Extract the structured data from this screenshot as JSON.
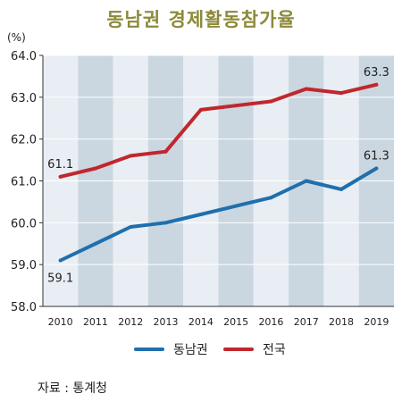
{
  "chart_data": {
    "type": "line",
    "title": "동남권 경제활동참가율",
    "ylabel": "(%)",
    "categories": [
      "2010",
      "2011",
      "2012",
      "2013",
      "2014",
      "2015",
      "2016",
      "2017",
      "2018",
      "2019"
    ],
    "ylim": [
      58.0,
      64.0
    ],
    "yticks": [
      "58.0",
      "59.0",
      "60.0",
      "61.0",
      "62.0",
      "63.0",
      "64.0"
    ],
    "series": [
      {
        "name": "동남권",
        "color": "#1f6fad",
        "values": [
          59.1,
          59.5,
          59.9,
          60.0,
          60.2,
          60.4,
          60.6,
          61.0,
          60.8,
          61.3
        ]
      },
      {
        "name": "전국",
        "color": "#c1272d",
        "values": [
          61.1,
          61.3,
          61.6,
          61.7,
          62.7,
          62.8,
          62.9,
          63.2,
          63.1,
          63.3
        ]
      }
    ],
    "data_labels": [
      {
        "series": 0,
        "index": 0,
        "text": "59.1"
      },
      {
        "series": 0,
        "index": 9,
        "text": "61.3"
      },
      {
        "series": 1,
        "index": 0,
        "text": "61.1"
      },
      {
        "series": 1,
        "index": 9,
        "text": "63.3"
      }
    ],
    "band_colors": [
      "#e8eef3",
      "#cad6e0"
    ]
  },
  "source": "자료 : 통계청"
}
